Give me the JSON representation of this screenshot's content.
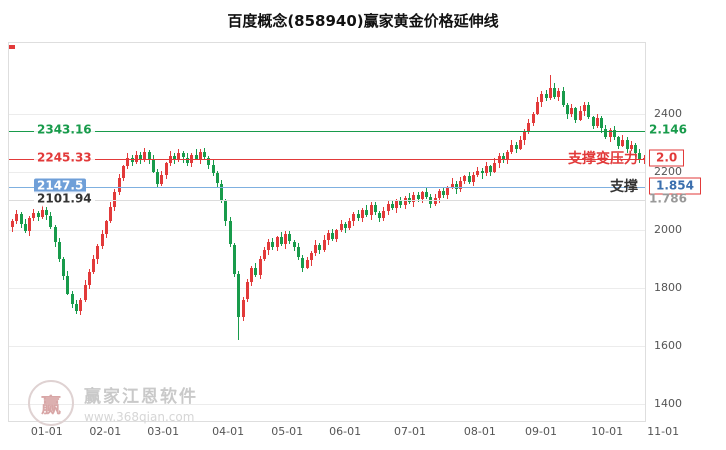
{
  "title": "百度概念(858940)赢家黄金价格延伸线",
  "colors": {
    "up": "#e23a3a",
    "down": "#189b4b",
    "ext": {
      "green": "#189b4b",
      "red": "#e23a3a",
      "blue": "#7fb0e0",
      "gray": "#dcdcdc"
    },
    "text": {
      "green": "#189b4b",
      "red": "#e23a3a",
      "blue": "#3b6fae",
      "gray": "#999999",
      "dark": "#333333"
    }
  },
  "watermark": {
    "logo_char": "赢",
    "brand": "赢家江恩软件",
    "url": "www.368qian.com"
  },
  "chart_data": {
    "type": "candlestick",
    "title": "百度概念(858940)赢家黄金价格延伸线",
    "xlabel": "",
    "ylabel": "",
    "grid": true,
    "ylim": [
      1400,
      2400
    ],
    "plot_range": [
      1341,
      2645
    ],
    "y_ticks": [
      2400,
      2200,
      2000,
      1800,
      1600,
      1400
    ],
    "x_ticks": [
      "01-01",
      "02-01",
      "03-01",
      "04-01",
      "05-01",
      "06-01",
      "07-01",
      "08-01",
      "09-01",
      "10-01",
      "11-01"
    ],
    "x_tick_fractions": [
      0.061,
      0.153,
      0.244,
      0.346,
      0.439,
      0.53,
      0.632,
      0.742,
      0.838,
      0.942,
      1.03
    ],
    "extension_lines": [
      {
        "price": 2343.16,
        "price_label": "2343.16",
        "color": "green",
        "left_style": "green",
        "right_label": "2.146",
        "right_color": "green",
        "right_boxed": false
      },
      {
        "price": 2245.33,
        "price_label": "2245.33",
        "color": "red",
        "left_style": "red",
        "right_label": "2.0",
        "right_color": "red",
        "right_boxed": true
      },
      {
        "price": 2147.5,
        "price_label": "2147.5",
        "color": "blue",
        "left_style": "badge",
        "right_label": "1.854",
        "right_color": "blue",
        "right_boxed": true
      },
      {
        "price": 2101.94,
        "price_label": "2101.94",
        "color": "gray",
        "left_style": "dark",
        "right_label": "1.786",
        "right_color": "gray",
        "right_boxed": false
      }
    ],
    "annotations": [
      {
        "text": "支撑变压力",
        "price": 2245.33,
        "color": "red"
      },
      {
        "text": "支撑",
        "price": 2147.5,
        "color": "dark"
      }
    ],
    "candles": [
      [
        2010,
        2038,
        1992,
        2030
      ],
      [
        2030,
        2069,
        2020,
        2055
      ],
      [
        2055,
        2061,
        2008,
        2020
      ],
      [
        2020,
        2038,
        1990,
        1995
      ],
      [
        1995,
        2050,
        1979,
        2040
      ],
      [
        2040,
        2072,
        2031,
        2060
      ],
      [
        2060,
        2065,
        2032,
        2045
      ],
      [
        2045,
        2086,
        2037,
        2070
      ],
      [
        2070,
        2079,
        2036,
        2050
      ],
      [
        2050,
        2063,
        2004,
        2010
      ],
      [
        2010,
        2018,
        1942,
        1960
      ],
      [
        1960,
        1974,
        1890,
        1900
      ],
      [
        1900,
        1906,
        1828,
        1840
      ],
      [
        1840,
        1858,
        1775,
        1780
      ],
      [
        1780,
        1790,
        1729,
        1745
      ],
      [
        1745,
        1757,
        1711,
        1720
      ],
      [
        1720,
        1765,
        1707,
        1760
      ],
      [
        1760,
        1826,
        1752,
        1810
      ],
      [
        1810,
        1864,
        1796,
        1855
      ],
      [
        1855,
        1913,
        1849,
        1900
      ],
      [
        1900,
        1953,
        1882,
        1945
      ],
      [
        1945,
        1999,
        1935,
        1985
      ],
      [
        1985,
        2036,
        1973,
        2030
      ],
      [
        2030,
        2098,
        2025,
        2080
      ],
      [
        2080,
        2140,
        2064,
        2130
      ],
      [
        2130,
        2192,
        2121,
        2180
      ],
      [
        2180,
        2225,
        2167,
        2220
      ],
      [
        2220,
        2266,
        2212,
        2250
      ],
      [
        2250,
        2259,
        2221,
        2235
      ],
      [
        2235,
        2273,
        2229,
        2260
      ],
      [
        2260,
        2268,
        2227,
        2245
      ],
      [
        2245,
        2284,
        2235,
        2270
      ],
      [
        2270,
        2276,
        2228,
        2240
      ],
      [
        2240,
        2258,
        2195,
        2200
      ],
      [
        2200,
        2210,
        2144,
        2160
      ],
      [
        2160,
        2202,
        2151,
        2190
      ],
      [
        2190,
        2235,
        2177,
        2230
      ],
      [
        2230,
        2271,
        2222,
        2255
      ],
      [
        2255,
        2264,
        2226,
        2240
      ],
      [
        2240,
        2278,
        2234,
        2265
      ],
      [
        2265,
        2273,
        2232,
        2250
      ],
      [
        2250,
        2264,
        2220,
        2230
      ],
      [
        2230,
        2266,
        2218,
        2260
      ],
      [
        2260,
        2278,
        2240,
        2245
      ],
      [
        2245,
        2280,
        2229,
        2270
      ],
      [
        2270,
        2282,
        2241,
        2250
      ],
      [
        2250,
        2255,
        2212,
        2225
      ],
      [
        2225,
        2241,
        2187,
        2195
      ],
      [
        2195,
        2204,
        2146,
        2160
      ],
      [
        2160,
        2173,
        2094,
        2100
      ],
      [
        2100,
        2108,
        2012,
        2030
      ],
      [
        2030,
        2044,
        1940,
        1950
      ],
      [
        1950,
        1956,
        1838,
        1850
      ],
      [
        1850,
        1858,
        1620,
        1700
      ],
      [
        1700,
        1770,
        1684,
        1760
      ],
      [
        1760,
        1832,
        1751,
        1820
      ],
      [
        1820,
        1875,
        1807,
        1870
      ],
      [
        1870,
        1886,
        1837,
        1845
      ],
      [
        1845,
        1909,
        1831,
        1900
      ],
      [
        1900,
        1943,
        1894,
        1930
      ],
      [
        1930,
        1968,
        1912,
        1960
      ],
      [
        1960,
        1974,
        1930,
        1940
      ],
      [
        1940,
        1981,
        1928,
        1975
      ],
      [
        1975,
        1993,
        1945,
        1950
      ],
      [
        1950,
        1995,
        1934,
        1985
      ],
      [
        1985,
        1997,
        1951,
        1960
      ],
      [
        1960,
        1965,
        1927,
        1940
      ],
      [
        1940,
        1956,
        1897,
        1905
      ],
      [
        1905,
        1914,
        1856,
        1870
      ],
      [
        1870,
        1908,
        1864,
        1895
      ],
      [
        1895,
        1928,
        1877,
        1920
      ],
      [
        1920,
        1964,
        1910,
        1950
      ],
      [
        1950,
        1956,
        1918,
        1930
      ],
      [
        1930,
        1983,
        1925,
        1965
      ],
      [
        1965,
        2000,
        1949,
        1990
      ],
      [
        1990,
        2002,
        1961,
        1970
      ],
      [
        1970,
        2005,
        1957,
        2000
      ],
      [
        2000,
        2036,
        1992,
        2020
      ],
      [
        2020,
        2029,
        1991,
        2005
      ],
      [
        2005,
        2043,
        1999,
        2030
      ],
      [
        2030,
        2063,
        2012,
        2055
      ],
      [
        2055,
        2069,
        2030,
        2040
      ],
      [
        2040,
        2076,
        2028,
        2070
      ],
      [
        2070,
        2088,
        2045,
        2050
      ],
      [
        2050,
        2095,
        2034,
        2085
      ],
      [
        2085,
        2097,
        2051,
        2060
      ],
      [
        2060,
        2065,
        2027,
        2040
      ],
      [
        2040,
        2081,
        2032,
        2065
      ],
      [
        2065,
        2099,
        2051,
        2090
      ],
      [
        2090,
        2103,
        2069,
        2075
      ],
      [
        2075,
        2108,
        2057,
        2100
      ],
      [
        2100,
        2114,
        2075,
        2085
      ],
      [
        2085,
        2116,
        2073,
        2110
      ],
      [
        2110,
        2128,
        2090,
        2095
      ],
      [
        2095,
        2130,
        2079,
        2120
      ],
      [
        2120,
        2132,
        2096,
        2105
      ],
      [
        2105,
        2135,
        2092,
        2130
      ],
      [
        2130,
        2146,
        2107,
        2115
      ],
      [
        2115,
        2124,
        2076,
        2090
      ],
      [
        2090,
        2123,
        2084,
        2110
      ],
      [
        2110,
        2143,
        2092,
        2135
      ],
      [
        2135,
        2149,
        2110,
        2120
      ],
      [
        2120,
        2151,
        2108,
        2145
      ],
      [
        2145,
        2178,
        2140,
        2160
      ],
      [
        2160,
        2170,
        2124,
        2140
      ],
      [
        2140,
        2182,
        2131,
        2170
      ],
      [
        2170,
        2190,
        2157,
        2185
      ],
      [
        2185,
        2201,
        2157,
        2165
      ],
      [
        2165,
        2199,
        2151,
        2190
      ],
      [
        2190,
        2218,
        2184,
        2205
      ],
      [
        2205,
        2213,
        2177,
        2195
      ],
      [
        2195,
        2234,
        2185,
        2220
      ],
      [
        2220,
        2226,
        2188,
        2200
      ],
      [
        2200,
        2248,
        2195,
        2230
      ],
      [
        2230,
        2265,
        2214,
        2255
      ],
      [
        2255,
        2267,
        2231,
        2240
      ],
      [
        2240,
        2275,
        2227,
        2270
      ],
      [
        2270,
        2311,
        2262,
        2295
      ],
      [
        2295,
        2304,
        2266,
        2280
      ],
      [
        2280,
        2323,
        2274,
        2310
      ],
      [
        2310,
        2348,
        2292,
        2340
      ],
      [
        2340,
        2384,
        2330,
        2370
      ],
      [
        2370,
        2406,
        2358,
        2400
      ],
      [
        2400,
        2458,
        2395,
        2440
      ],
      [
        2440,
        2480,
        2424,
        2470
      ],
      [
        2470,
        2482,
        2446,
        2455
      ],
      [
        2455,
        2535,
        2448,
        2490
      ],
      [
        2490,
        2506,
        2452,
        2460
      ],
      [
        2460,
        2489,
        2446,
        2480
      ],
      [
        2480,
        2493,
        2424,
        2430
      ],
      [
        2430,
        2438,
        2382,
        2400
      ],
      [
        2400,
        2434,
        2390,
        2420
      ],
      [
        2420,
        2426,
        2368,
        2380
      ],
      [
        2380,
        2428,
        2375,
        2410
      ],
      [
        2410,
        2440,
        2394,
        2430
      ],
      [
        2430,
        2442,
        2381,
        2390
      ],
      [
        2390,
        2395,
        2347,
        2360
      ],
      [
        2360,
        2401,
        2352,
        2385
      ],
      [
        2385,
        2394,
        2336,
        2350
      ],
      [
        2350,
        2363,
        2314,
        2320
      ],
      [
        2320,
        2353,
        2302,
        2345
      ],
      [
        2345,
        2359,
        2310,
        2320
      ],
      [
        2320,
        2326,
        2278,
        2290
      ],
      [
        2290,
        2328,
        2285,
        2310
      ],
      [
        2310,
        2320,
        2264,
        2280
      ],
      [
        2280,
        2307,
        2271,
        2295
      ],
      [
        2295,
        2300,
        2252,
        2265
      ],
      [
        2265,
        2281,
        2232,
        2240
      ],
      [
        2240,
        2259,
        2226,
        2250
      ]
    ]
  }
}
